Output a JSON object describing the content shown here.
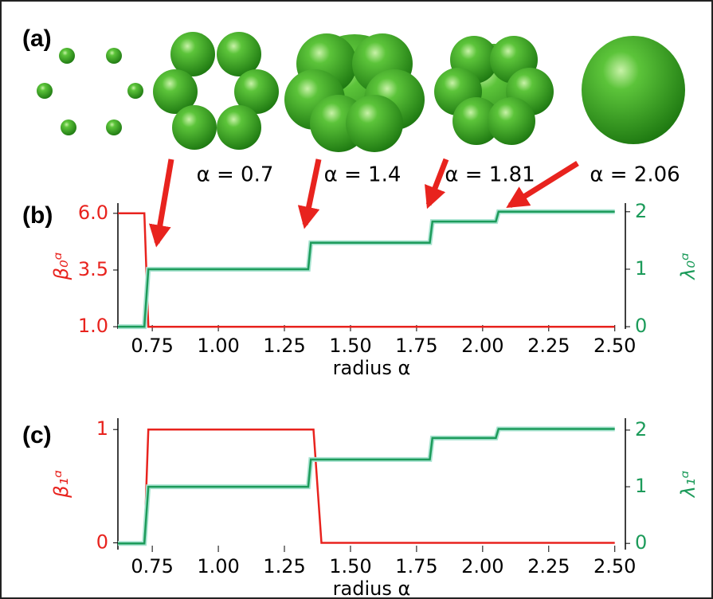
{
  "figure": {
    "panel_labels": [
      "(a)",
      "(b)",
      "(c)"
    ],
    "annotations": [
      "α = 0.7",
      "α = 1.4",
      "α = 1.81",
      "α = 2.06"
    ]
  },
  "chart_data": [
    {
      "type": "line",
      "xlabel": "radius α",
      "ylabel": "β₀ᵅ",
      "y2label": "λ₀ᵅ",
      "xlim": [
        0.62,
        2.54
      ],
      "xticks": [
        0.75,
        {
          "value": 1,
          "label": "1.00"
        },
        1.25,
        {
          "value": 1.5,
          "label": "1.50"
        },
        1.75,
        {
          "value": 2,
          "label": "2.00"
        },
        2.25,
        {
          "value": 2.5,
          "label": "2.50"
        }
      ],
      "ylim": [
        0.9,
        6.45
      ],
      "yticks": [
        {
          "value": 1,
          "label": "1.0"
        },
        3.5,
        {
          "value": 6,
          "label": "6.0"
        }
      ],
      "y2lim": [
        -0.04,
        2.15
      ],
      "y2ticks": [
        0,
        1,
        2
      ],
      "series": [
        {
          "color": "#e8231e",
          "x": [
            0.62,
            0.72,
            0.735,
            2.5
          ],
          "values": [
            6,
            6,
            1,
            1
          ]
        },
        {
          "color": "#1c9b5a",
          "axis": "y2",
          "x": [
            0.62,
            0.72,
            0.735,
            1.34,
            1.35,
            1.8,
            1.81,
            2.05,
            2.06,
            2.5
          ],
          "values": [
            0,
            0,
            1,
            1,
            1.46,
            1.46,
            1.83,
            1.83,
            2,
            2
          ]
        }
      ]
    },
    {
      "type": "line",
      "xlabel": "radius α",
      "ylabel": "β₁ᵅ",
      "y2label": "λ₁ᵅ",
      "xlim": [
        0.62,
        2.54
      ],
      "xticks": [
        0.75,
        {
          "value": 1,
          "label": "1.00"
        },
        1.25,
        {
          "value": 1.5,
          "label": "1.50"
        },
        1.75,
        {
          "value": 2,
          "label": "2.00"
        },
        2.25,
        {
          "value": 2.5,
          "label": "2.50"
        }
      ],
      "ylim": [
        -0.06,
        1.1
      ],
      "yticks": [
        0,
        1
      ],
      "y2lim": [
        -0.11,
        2.21
      ],
      "y2ticks": [
        0,
        1,
        2
      ],
      "series": [
        {
          "color": "#e8231e",
          "x": [
            0.62,
            0.72,
            0.735,
            1.36,
            1.39,
            2.5
          ],
          "values": [
            0,
            0,
            1,
            1,
            0,
            0
          ]
        },
        {
          "color": "#1c9b5a",
          "axis": "y2",
          "x": [
            0.62,
            0.72,
            0.735,
            1.34,
            1.35,
            1.8,
            1.81,
            2.05,
            2.06,
            2.5
          ],
          "values": [
            0,
            0,
            1,
            1,
            1.48,
            1.48,
            1.86,
            1.86,
            2.02,
            2.02
          ]
        }
      ]
    }
  ]
}
